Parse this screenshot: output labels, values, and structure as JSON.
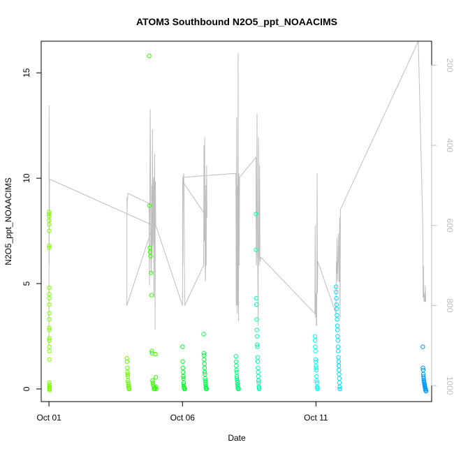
{
  "chart_data": {
    "type": "scatter",
    "title": "ATOM3 Southbound N2O5_ppt_NOAACIMS",
    "xlabel": "Date",
    "ylabel": "N2O5_ppt_NOAACIMS",
    "xlim": [
      "2017-09-30T17:00",
      "2017-10-15T08:00"
    ],
    "ylim": [
      -0.6,
      16.5
    ],
    "x_ticks": [
      {
        "label": "Oct 01",
        "value": "2017-10-01T00:00"
      },
      {
        "label": "Oct 06",
        "value": "2017-10-06T00:00"
      },
      {
        "label": "Oct 11",
        "value": "2017-10-11T00:00"
      }
    ],
    "y_ticks": [
      0,
      5,
      10,
      15
    ],
    "y2_axis": {
      "quantity": "pressure",
      "reversed": true,
      "range": [
        1040,
        140
      ],
      "ticks": [
        200,
        400,
        600,
        800,
        1000
      ],
      "color": "#bebebe"
    },
    "colors": {
      "line": "#bebebe",
      "marker_start": "#80ff00",
      "marker_end": "#0099ff"
    },
    "marker": "open-circle",
    "series": [
      {
        "color": "#7fff00",
        "x": [
          "2017-10-01T00:00",
          "2017-10-01T00:01",
          "2017-10-01T00:02",
          "2017-10-01T00:03",
          "2017-10-01T00:04",
          "2017-10-01T00:05",
          "2017-10-01T00:06",
          "2017-10-01T00:07",
          "2017-10-01T00:08",
          "2017-10-01T00:09",
          "2017-10-01T00:10",
          "2017-10-01T00:11",
          "2017-10-01T00:12",
          "2017-10-01T00:13",
          "2017-10-01T00:14",
          "2017-10-01T00:15",
          "2017-10-01T00:16",
          "2017-10-01T00:17",
          "2017-10-01T00:18",
          "2017-10-01T00:19",
          "2017-10-01T00:20",
          "2017-10-01T00:21",
          "2017-10-01T00:22",
          "2017-10-01T00:23",
          "2017-10-01T00:24",
          "2017-10-01T00:25",
          "2017-10-01T00:26",
          "2017-10-01T00:27",
          "2017-10-01T00:28",
          "2017-10-01T00:29",
          "2017-10-01T00:30"
        ],
        "y": [
          8.4,
          8.3,
          8.2,
          8.0,
          7.8,
          7.5,
          6.8,
          6.7,
          4.8,
          4.5,
          4.3,
          4.0,
          3.6,
          3.3,
          2.9,
          2.8,
          2.4,
          2.3,
          2.0,
          1.8,
          1.4,
          0.3,
          0.2,
          0.1,
          0.05,
          0.0,
          0.0,
          0.1,
          -0.05,
          0.0,
          0.2
        ]
      },
      {
        "color": "#66ff00",
        "x": [
          "2017-10-03T22:00",
          "2017-10-03T22:10",
          "2017-10-03T22:20",
          "2017-10-03T22:30",
          "2017-10-03T22:40",
          "2017-10-03T22:50",
          "2017-10-03T23:00",
          "2017-10-03T23:10",
          "2017-10-03T23:20",
          "2017-10-03T23:30",
          "2017-10-03T23:40",
          "2017-10-03T23:50",
          "2017-10-04T00:00",
          "2017-10-04T00:10"
        ],
        "y": [
          1.45,
          1.3,
          1.0,
          0.8,
          0.7,
          0.6,
          0.4,
          0.3,
          0.2,
          0.1,
          0.05,
          0.0,
          0.0,
          0.0
        ]
      },
      {
        "color": "#33ff00",
        "x": [
          "2017-10-04T18:00",
          "2017-10-04T18:20",
          "2017-10-04T18:40",
          "2017-10-04T19:00",
          "2017-10-04T19:20",
          "2017-10-04T19:40",
          "2017-10-04T20:00",
          "2017-10-04T20:20",
          "2017-10-04T20:40",
          "2017-10-04T21:00",
          "2017-10-04T21:20",
          "2017-10-04T21:40",
          "2017-10-04T22:00",
          "2017-10-04T22:20",
          "2017-10-04T23:00",
          "2017-10-04T23:20",
          "2017-10-04T23:40",
          "2017-10-05T00:00",
          "2017-10-05T00:10",
          "2017-10-05T00:20"
        ],
        "y": [
          15.8,
          8.7,
          6.7,
          6.5,
          6.3,
          5.5,
          4.45,
          1.8,
          1.7,
          0.4,
          0.3,
          0.2,
          0.1,
          0.0,
          0.0,
          0.05,
          1.65,
          0.55,
          0.1,
          0.0
        ]
      },
      {
        "color": "#00ff22",
        "x": [
          "2017-10-06T00:00",
          "2017-10-06T00:10",
          "2017-10-06T00:20",
          "2017-10-06T00:30",
          "2017-10-06T00:40",
          "2017-10-06T00:50",
          "2017-10-06T01:00",
          "2017-10-06T01:10",
          "2017-10-06T01:20",
          "2017-10-06T01:30",
          "2017-10-06T01:40",
          "2017-10-06T01:50",
          "2017-10-06T02:00"
        ],
        "y": [
          2.0,
          1.3,
          1.0,
          0.8,
          0.6,
          0.5,
          0.3,
          0.2,
          0.1,
          0.05,
          0.0,
          0.0,
          0.0
        ]
      },
      {
        "color": "#00ff44",
        "x": [
          "2017-10-06T19:00",
          "2017-10-06T19:10",
          "2017-10-06T19:20",
          "2017-10-06T19:30",
          "2017-10-06T19:40",
          "2017-10-06T19:50",
          "2017-10-06T20:00",
          "2017-10-06T20:10",
          "2017-10-06T20:20",
          "2017-10-06T20:30",
          "2017-10-06T20:40",
          "2017-10-06T20:50",
          "2017-10-06T21:00",
          "2017-10-06T21:10",
          "2017-10-06T21:20",
          "2017-10-06T21:30",
          "2017-10-06T21:40"
        ],
        "y": [
          2.6,
          1.7,
          1.6,
          1.4,
          1.2,
          1.0,
          0.8,
          0.7,
          0.5,
          0.4,
          0.3,
          0.2,
          0.1,
          0.05,
          0.0,
          0.0,
          0.0
        ]
      },
      {
        "color": "#00ff77",
        "x": [
          "2017-10-08T00:00",
          "2017-10-08T00:10",
          "2017-10-08T00:20",
          "2017-10-08T00:30",
          "2017-10-08T00:40",
          "2017-10-08T00:50",
          "2017-10-08T01:00",
          "2017-10-08T01:10",
          "2017-10-08T01:20",
          "2017-10-08T01:30",
          "2017-10-08T01:40",
          "2017-10-08T01:50",
          "2017-10-08T02:00",
          "2017-10-08T02:10",
          "2017-10-08T02:20",
          "2017-10-08T02:30"
        ],
        "y": [
          1.55,
          1.3,
          1.1,
          0.9,
          0.8,
          0.6,
          0.5,
          0.4,
          0.3,
          0.2,
          0.1,
          0.05,
          0.0,
          0.0,
          0.0,
          0.0
        ]
      },
      {
        "color": "#00ffaa",
        "x": [
          "2017-10-08T18:00",
          "2017-10-08T18:10",
          "2017-10-08T18:20",
          "2017-10-08T18:30",
          "2017-10-08T18:40",
          "2017-10-08T18:50",
          "2017-10-08T19:00",
          "2017-10-08T19:10",
          "2017-10-08T19:20",
          "2017-10-08T19:30",
          "2017-10-08T19:40",
          "2017-10-08T19:50",
          "2017-10-08T20:00",
          "2017-10-08T20:10",
          "2017-10-08T20:20",
          "2017-10-08T20:30",
          "2017-10-08T20:40",
          "2017-10-08T20:50",
          "2017-10-08T21:00"
        ],
        "y": [
          8.3,
          6.6,
          4.3,
          4.0,
          3.3,
          2.8,
          2.5,
          2.1,
          2.0,
          1.5,
          1.3,
          1.0,
          0.8,
          0.6,
          0.4,
          0.3,
          0.1,
          0.05,
          0.0
        ]
      },
      {
        "color": "#00ffee",
        "x": [
          "2017-10-10T23:00",
          "2017-10-10T23:10",
          "2017-10-10T23:20",
          "2017-10-10T23:30",
          "2017-10-10T23:40",
          "2017-10-10T23:50",
          "2017-10-11T00:00",
          "2017-10-11T00:10",
          "2017-10-11T00:20",
          "2017-10-11T00:30",
          "2017-10-11T00:40",
          "2017-10-11T00:50",
          "2017-10-11T01:00",
          "2017-10-11T01:10",
          "2017-10-11T01:20"
        ],
        "y": [
          2.5,
          2.3,
          2.0,
          1.8,
          1.4,
          1.3,
          1.1,
          1.0,
          0.9,
          0.6,
          0.4,
          0.3,
          0.1,
          0.05,
          0.0
        ]
      },
      {
        "color": "#00ddff",
        "x": [
          "2017-10-11T18:00",
          "2017-10-11T18:10",
          "2017-10-11T18:20",
          "2017-10-11T18:30",
          "2017-10-11T18:40",
          "2017-10-11T18:50",
          "2017-10-11T19:00",
          "2017-10-11T19:10",
          "2017-10-11T19:20",
          "2017-10-11T19:30",
          "2017-10-11T19:40",
          "2017-10-11T19:50",
          "2017-10-11T20:00",
          "2017-10-11T20:10",
          "2017-10-11T20:20",
          "2017-10-11T20:30",
          "2017-10-11T20:40",
          "2017-10-11T20:50",
          "2017-10-11T21:00",
          "2017-10-11T21:10",
          "2017-10-11T21:20",
          "2017-10-11T21:30",
          "2017-10-11T21:40"
        ],
        "y": [
          4.85,
          4.6,
          4.3,
          4.0,
          3.8,
          3.5,
          3.3,
          3.0,
          2.8,
          2.5,
          2.3,
          2.0,
          1.8,
          1.5,
          1.3,
          1.1,
          0.9,
          0.7,
          0.5,
          0.3,
          0.1,
          0.0,
          0.0
        ]
      },
      {
        "color": "#0099ff",
        "x": [
          "2017-10-15T00:00",
          "2017-10-15T00:10",
          "2017-10-15T00:20",
          "2017-10-15T00:30",
          "2017-10-15T00:40",
          "2017-10-15T00:50",
          "2017-10-15T01:00",
          "2017-10-15T01:10",
          "2017-10-15T01:20",
          "2017-10-15T01:30",
          "2017-10-15T01:40",
          "2017-10-15T01:50",
          "2017-10-15T02:00",
          "2017-10-15T02:10",
          "2017-10-15T02:20",
          "2017-10-15T02:30",
          "2017-10-15T02:40",
          "2017-10-15T02:50",
          "2017-10-15T03:00"
        ],
        "y": [
          2.0,
          1.0,
          0.9,
          0.7,
          0.6,
          0.5,
          0.4,
          0.35,
          0.3,
          0.25,
          0.2,
          0.15,
          0.1,
          0.05,
          0.0,
          -0.05,
          0.0,
          -0.1,
          -0.1
        ]
      }
    ],
    "pressure_trace": {
      "color": "#bebebe",
      "x": [
        "2017-10-01T00:00",
        "2017-10-01T00:05",
        "2017-10-01T00:10",
        "2017-10-01T00:15",
        "2017-10-01T00:20",
        "2017-10-01T00:30",
        "2017-10-01T01:00",
        "2017-10-04T21:30",
        "2017-10-03T22:00",
        "2017-10-03T22:05",
        "2017-10-03T22:10",
        "2017-10-03T22:20",
        "2017-10-03T23:00",
        "2017-10-04T18:00",
        "2017-10-04T18:20",
        "2017-10-04T18:40",
        "2017-10-04T19:00",
        "2017-10-04T19:20",
        "2017-10-04T19:40",
        "2017-10-04T20:00",
        "2017-10-04T20:20",
        "2017-10-04T20:40",
        "2017-10-04T21:00",
        "2017-10-04T21:20",
        "2017-10-04T21:40",
        "2017-10-04T22:00",
        "2017-10-04T22:20",
        "2017-10-04T22:40",
        "2017-10-04T23:00",
        "2017-10-04T23:20",
        "2017-10-04T23:40",
        "2017-10-05T00:00",
        "2017-10-06T00:00",
        "2017-10-06T00:10",
        "2017-10-06T00:20",
        "2017-10-06T00:40",
        "2017-10-06T01:00",
        "2017-10-06T01:20",
        "2017-10-06T02:00",
        "2017-10-06T19:00",
        "2017-10-06T19:20",
        "2017-10-06T19:40",
        "2017-10-06T20:00",
        "2017-10-06T20:20",
        "2017-10-06T20:40",
        "2017-10-06T21:00",
        "2017-10-06T21:20",
        "2017-10-06T21:40",
        "2017-10-06T22:00",
        "2017-10-06T00:10",
        "2017-10-06T00:20",
        "2017-10-08T00:00",
        "2017-10-08T00:20",
        "2017-10-08T00:40",
        "2017-10-08T01:00",
        "2017-10-08T01:20",
        "2017-10-08T01:40",
        "2017-10-08T02:00",
        "2017-10-08T02:20",
        "2017-10-08T02:40",
        "2017-10-08T03:00",
        "2017-10-08T03:20",
        "2017-10-08T18:00",
        "2017-10-08T18:20",
        "2017-10-08T18:40",
        "2017-10-08T19:00",
        "2017-10-08T19:20",
        "2017-10-08T19:40",
        "2017-10-08T20:00",
        "2017-10-08T20:20",
        "2017-10-08T20:40",
        "2017-10-08T21:00",
        "2017-10-08T21:20",
        "2017-10-08T21:40",
        "2017-10-08T22:00",
        "2017-10-08T22:20",
        "2017-10-08T22:40",
        "2017-10-10T23:00",
        "2017-10-10T23:20",
        "2017-10-10T23:40",
        "2017-10-11T00:00",
        "2017-10-11T00:20",
        "2017-10-11T00:40",
        "2017-10-11T01:00",
        "2017-10-11T01:20",
        "2017-10-11T01:40",
        "2017-10-11T18:00",
        "2017-10-11T18:20",
        "2017-10-11T18:40",
        "2017-10-11T19:00",
        "2017-10-11T19:20",
        "2017-10-11T19:40",
        "2017-10-11T20:00",
        "2017-10-11T20:20",
        "2017-10-11T20:40",
        "2017-10-11T21:00",
        "2017-10-11T21:20",
        "2017-10-11T21:40",
        "2017-10-11T22:00",
        "2017-10-14T20:00",
        "2017-10-15T00:00",
        "2017-10-15T00:20",
        "2017-10-15T00:40",
        "2017-10-15T01:00",
        "2017-10-15T01:20",
        "2017-10-15T01:40",
        "2017-10-15T02:00",
        "2017-10-15T02:20",
        "2017-10-15T02:40",
        "2017-10-15T03:00"
      ],
      "y": [
        900,
        300,
        700,
        450,
        600,
        485,
        485,
        600,
        800,
        530,
        565,
        545,
        520,
        545,
        750,
        520,
        310,
        500,
        700,
        720,
        500,
        670,
        360,
        650,
        545,
        480,
        780,
        510,
        420,
        860,
        490,
        600,
        800,
        490,
        700,
        490,
        470,
        500,
        800,
        700,
        400,
        640,
        380,
        700,
        740,
        500,
        700,
        450,
        580,
        490,
        480,
        470,
        800,
        330,
        820,
        500,
        800,
        170,
        840,
        470,
        700,
        480,
        430,
        700,
        670,
        320,
        600,
        700,
        850,
        380,
        610,
        700,
        450,
        680,
        690,
        680,
        680,
        820,
        600,
        830,
        770,
        850,
        850,
        470,
        770,
        690,
        820,
        690,
        720,
        630,
        740,
        700,
        680,
        620,
        740,
        740,
        580,
        830,
        560,
        140,
        600,
        780,
        700,
        790,
        770,
        790,
        790,
        750,
        790,
        790
      ]
    }
  }
}
